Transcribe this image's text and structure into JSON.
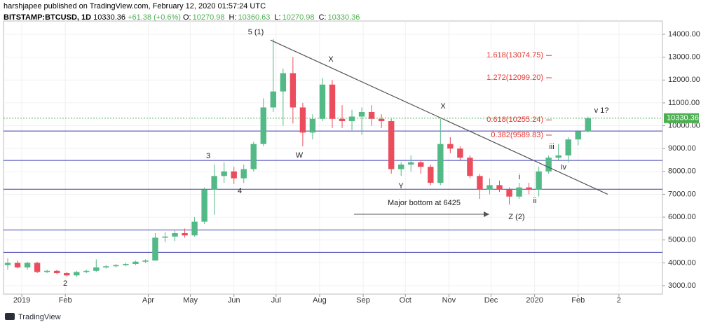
{
  "chart_data": {
    "type": "candlestick",
    "header": {
      "author_line": "harshjapee published on TradingView.com, February 12, 2020 01:57:24 UTC",
      "symbol": "BITSTAMP:BTCUSD, 1D",
      "last": "10330.36",
      "change": "+61.38 (+0.6%)",
      "ohlc": [
        {
          "label": "O:",
          "value": "10270.98"
        },
        {
          "label": "H:",
          "value": "10360.63"
        },
        {
          "label": "L:",
          "value": "10270.98"
        },
        {
          "label": "C:",
          "value": "10330.36"
        }
      ]
    },
    "brand": "TradingView",
    "x": [
      -10,
      -3,
      4,
      11,
      18,
      25,
      32,
      39,
      46,
      53,
      60,
      67,
      74,
      81,
      88,
      95,
      102,
      109,
      116,
      123,
      130,
      137,
      144,
      151,
      158,
      165,
      172,
      179,
      186,
      193,
      200,
      207,
      214,
      221,
      228,
      235,
      242,
      249,
      256,
      263,
      270,
      277,
      284,
      291,
      298,
      305,
      312,
      319,
      326,
      333,
      340,
      347,
      354,
      361,
      368,
      375,
      382,
      389,
      396,
      403
    ],
    "open": [
      3900,
      4000,
      3800,
      4000,
      3600,
      3650,
      3550,
      3450,
      3600,
      3650,
      3800,
      3850,
      3900,
      3950,
      4050,
      4100,
      5100,
      5150,
      5300,
      5200,
      5800,
      7200,
      7800,
      8000,
      7700,
      8100,
      9200,
      10800,
      11500,
      12300,
      10800,
      9700,
      10300,
      11800,
      10300,
      10200,
      10400,
      10600,
      10300,
      10200,
      8100,
      8300,
      8400,
      8200,
      7500,
      9200,
      9000,
      8600,
      7800,
      7200,
      7400,
      7200,
      6900,
      7300,
      7200,
      8000,
      8600,
      8700,
      9400,
      9750
    ],
    "high": [
      4200,
      4100,
      4050,
      4050,
      3700,
      3700,
      3600,
      3650,
      3700,
      4150,
      3900,
      3950,
      4000,
      4100,
      4150,
      5300,
      5350,
      5400,
      5500,
      6000,
      7300,
      8300,
      8400,
      8200,
      8300,
      9300,
      11200,
      13800,
      12500,
      13000,
      11000,
      10500,
      12100,
      12000,
      10900,
      10700,
      10800,
      10900,
      10500,
      10300,
      8400,
      8700,
      8500,
      8300,
      10300,
      9500,
      9100,
      8700,
      7900,
      7700,
      7600,
      7300,
      7500,
      7500,
      8200,
      8700,
      9200,
      9500,
      9800,
      10400
    ],
    "low": [
      3700,
      3750,
      3700,
      3550,
      3550,
      3500,
      3400,
      3380,
      3550,
      3600,
      3750,
      3800,
      3850,
      3900,
      4000,
      4100,
      4900,
      4950,
      5100,
      5150,
      5700,
      6100,
      7500,
      7450,
      7500,
      8000,
      9100,
      10600,
      10000,
      10100,
      9100,
      9400,
      10200,
      9900,
      9900,
      9800,
      9600,
      10000,
      9900,
      7900,
      7800,
      8000,
      7900,
      7400,
      7400,
      8800,
      8500,
      7700,
      6800,
      7000,
      7100,
      6550,
      6800,
      7000,
      6900,
      7900,
      8500,
      8400,
      9150,
      9700
    ],
    "close": [
      4000,
      3800,
      4000,
      3600,
      3650,
      3550,
      3450,
      3600,
      3650,
      3800,
      3850,
      3900,
      3950,
      4050,
      4100,
      5100,
      5150,
      5300,
      5200,
      5800,
      7200,
      7800,
      8000,
      7700,
      8100,
      9200,
      10800,
      11500,
      12300,
      10800,
      9700,
      10300,
      11800,
      10300,
      10200,
      10400,
      10600,
      10300,
      10200,
      8100,
      8300,
      8400,
      8200,
      7500,
      9200,
      9000,
      8600,
      7800,
      7200,
      7400,
      7200,
      6900,
      7300,
      7200,
      8000,
      8600,
      8700,
      9400,
      9750,
      10330
    ],
    "up_color": "#53b987",
    "down_color": "#eb4d5c",
    "xlim": [
      -13,
      456
    ],
    "ylim": [
      2632,
      14583
    ],
    "xticks": [
      {
        "value": 0,
        "label": "2019"
      },
      {
        "value": 31,
        "label": "Feb"
      },
      {
        "value": 90,
        "label": "Apr"
      },
      {
        "value": 120,
        "label": "May"
      },
      {
        "value": 151,
        "label": "Jun"
      },
      {
        "value": 181,
        "label": "Jul"
      },
      {
        "value": 212,
        "label": "Aug"
      },
      {
        "value": 243,
        "label": "Sep"
      },
      {
        "value": 273,
        "label": "Oct"
      },
      {
        "value": 304,
        "label": "Nov"
      },
      {
        "value": 334,
        "label": "Dec"
      },
      {
        "value": 365,
        "label": "2020"
      },
      {
        "value": 396,
        "label": "Feb"
      },
      {
        "value": 425,
        "label": "2"
      }
    ],
    "yticks": [
      {
        "value": 3000,
        "label": "3000.00"
      },
      {
        "value": 4000,
        "label": "4000.00"
      },
      {
        "value": 5000,
        "label": "5000.00"
      },
      {
        "value": 6000,
        "label": "6000.00"
      },
      {
        "value": 7000,
        "label": "7000.00"
      },
      {
        "value": 8000,
        "label": "8000.00"
      },
      {
        "value": 9000,
        "label": "9000.00"
      },
      {
        "value": 10000,
        "label": "10000.00"
      },
      {
        "value": 11000,
        "label": "11000.00"
      },
      {
        "value": 12000,
        "label": "12000.00"
      },
      {
        "value": 13000,
        "label": "13000.00"
      },
      {
        "value": 14000,
        "label": "14000.00"
      }
    ],
    "grid": true,
    "levels": {
      "values": [
        9770,
        8480,
        7220,
        5440,
        4460
      ],
      "color": "#3f3fb0"
    },
    "last_price": {
      "value": 10330.36,
      "color": "#4caf50"
    },
    "trendline": {
      "x": [
        177,
        417
      ],
      "values": [
        13750,
        7000
      ],
      "color": "#555"
    },
    "fib_levels": [
      {
        "value": 13074.75,
        "label": "1.618(13074.75)"
      },
      {
        "value": 12099.2,
        "label": "1.272(12099.20)"
      },
      {
        "value": 10255.24,
        "label": "0.618(10255.24)"
      },
      {
        "value": 9589.83,
        "label": "0.382(9589.83)"
      }
    ],
    "fib_color": "#e53935",
    "annotations": [
      "5 (1)",
      "X",
      "X",
      "W",
      "Y",
      "3",
      "4",
      "2",
      "i",
      "ii",
      "iii",
      "iv",
      "v 1?",
      "Z (2)",
      "Major bottom at 6425"
    ]
  }
}
